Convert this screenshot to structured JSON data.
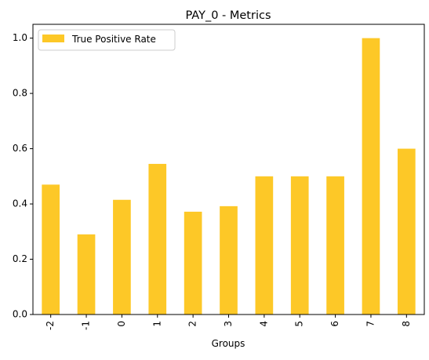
{
  "chart_data": {
    "type": "bar",
    "title": "PAY_0 - Metrics",
    "xlabel": "Groups",
    "ylabel": "",
    "categories": [
      "-2",
      "-1",
      "0",
      "1",
      "2",
      "3",
      "4",
      "5",
      "6",
      "7",
      "8"
    ],
    "series": [
      {
        "name": "True Positive Rate",
        "values": [
          0.47,
          0.29,
          0.415,
          0.545,
          0.372,
          0.392,
          0.5,
          0.5,
          0.5,
          1.0,
          0.6
        ],
        "color": "#fdc827"
      }
    ],
    "ylim": [
      0,
      1.05
    ],
    "yticks": [
      "0.0",
      "0.2",
      "0.4",
      "0.6",
      "0.8",
      "1.0"
    ],
    "grid": false,
    "legend_position": "top-left"
  }
}
